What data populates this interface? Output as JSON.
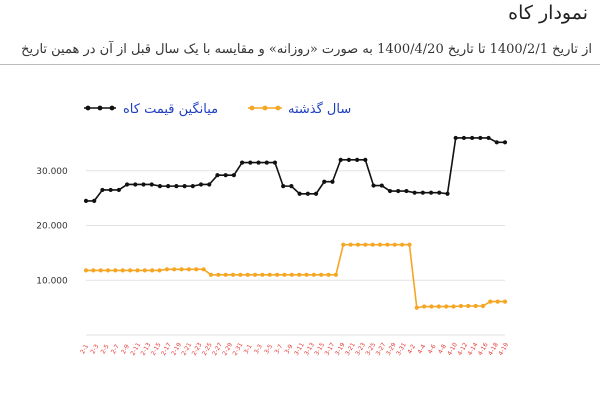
{
  "page": {
    "title": "نمودار کاه",
    "subtitle": "از تاریخ 1400/2/1 تا تاریخ 1400/4/20 به صورت «روزانه» و مقایسه با یک سال قبل از آن در همین تاریخ"
  },
  "chart_data": {
    "type": "line",
    "ylim": [
      0,
      38000
    ],
    "yticks": [
      10000,
      20000,
      30000
    ],
    "ytick_labels": [
      "10.000",
      "20.000",
      "30.000"
    ],
    "grid": true,
    "legend_position": "top",
    "x_labels": [
      "2-1",
      "2-3",
      "2-5",
      "2-7",
      "2-9",
      "2-11",
      "2-13",
      "2-15",
      "2-17",
      "2-19",
      "2-21",
      "2-23",
      "2-25",
      "2-27",
      "2-29",
      "2-31",
      "3-1",
      "3-3",
      "3-5",
      "3-7",
      "3-9",
      "3-11",
      "3-13",
      "3-15",
      "3-17",
      "3-19",
      "3-21",
      "3-23",
      "3-25",
      "3-27",
      "3-29",
      "3-31",
      "4-2",
      "4-4",
      "4-6",
      "4-8",
      "4-10",
      "4-12",
      "4-14",
      "4-16",
      "4-18",
      "4-19"
    ],
    "series": [
      {
        "name": "میانگین قیمت کاه",
        "color": "#111111",
        "values": [
          24500,
          24500,
          26500,
          26500,
          26500,
          27500,
          27500,
          27500,
          27500,
          27200,
          27200,
          27200,
          27200,
          27200,
          27500,
          27500,
          29200,
          29200,
          29200,
          31500,
          31500,
          31500,
          31500,
          31500,
          27200,
          27200,
          25800,
          25800,
          25800,
          28000,
          28000,
          32000,
          32000,
          32000,
          32000,
          27300,
          27300,
          26300,
          26300,
          26300,
          26000,
          26000,
          26000,
          26000,
          25800,
          36000,
          36000,
          36000,
          36000,
          36000,
          35200,
          35200
        ]
      },
      {
        "name": "سال گذشته",
        "color": "#f5a623",
        "values": [
          11800,
          11800,
          11800,
          11800,
          11800,
          11800,
          11800,
          11800,
          11800,
          11800,
          11800,
          12000,
          12000,
          12000,
          12000,
          12000,
          12000,
          11000,
          11000,
          11000,
          11000,
          11000,
          11000,
          11000,
          11000,
          11000,
          11000,
          11000,
          11000,
          11000,
          11000,
          11000,
          11000,
          11000,
          11000,
          16500,
          16500,
          16500,
          16500,
          16500,
          16500,
          16500,
          16500,
          16500,
          16500,
          5000,
          5200,
          5200,
          5200,
          5200,
          5200,
          5300,
          5300,
          5300,
          5300,
          6100,
          6100,
          6100
        ]
      }
    ]
  }
}
